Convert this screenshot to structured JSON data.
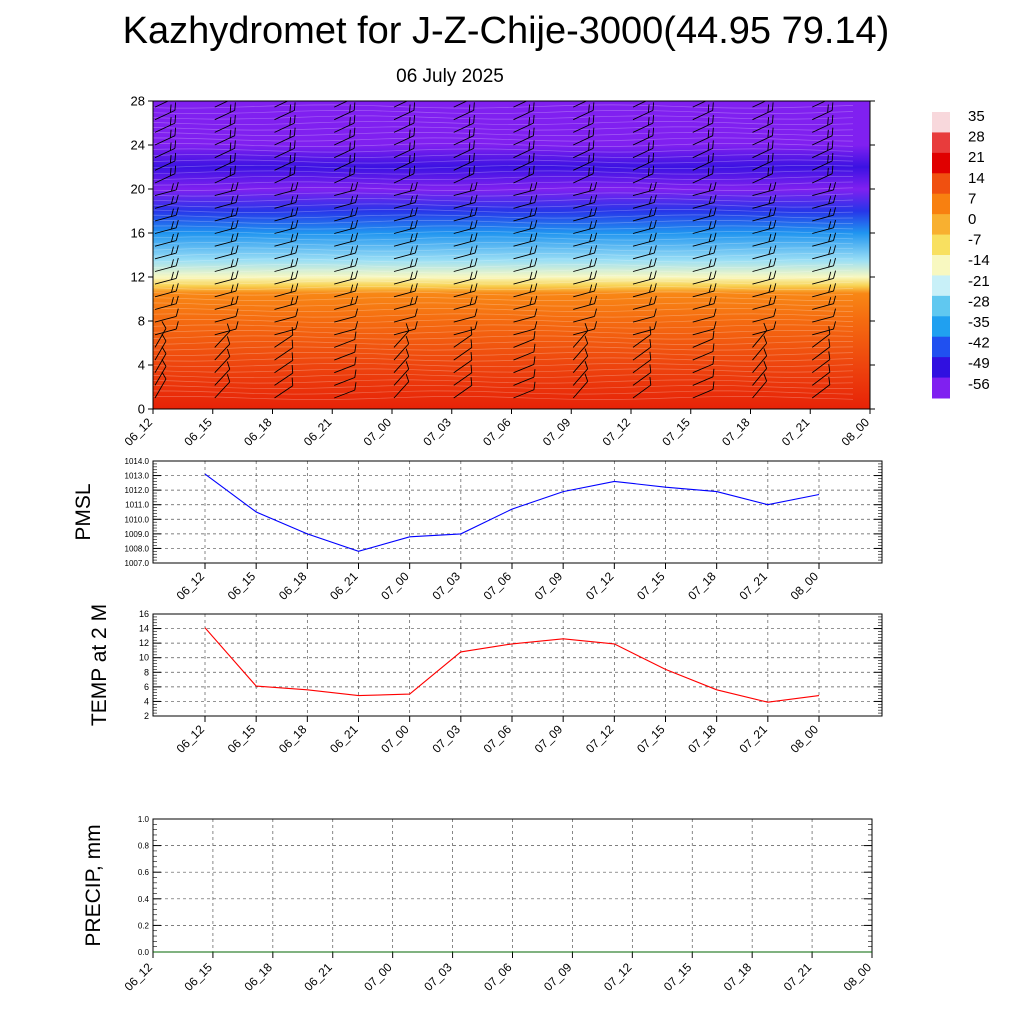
{
  "header": {
    "title": "Kazhydromet for J-Z-Chije-3000(44.95 79.14)",
    "date": "06 July 2025"
  },
  "chart_data": [
    {
      "type": "heatmap",
      "x_labels": [
        "06_12",
        "06_15",
        "06_18",
        "06_21",
        "07_00",
        "07_03",
        "07_06",
        "07_09",
        "07_12",
        "07_15",
        "07_18",
        "07_21",
        "08_00"
      ],
      "y_ticks": [
        0,
        4,
        8,
        12,
        16,
        20,
        24,
        28
      ],
      "ylim": [
        0,
        28
      ],
      "colorbar": {
        "labels": [
          "35",
          "28",
          "21",
          "14",
          "7",
          "0",
          "-7",
          "-14",
          "-21",
          "-28",
          "-35",
          "-42",
          "-49",
          "-56"
        ],
        "colors": [
          "#f8d8dc",
          "#e83c3c",
          "#e00000",
          "#f05010",
          "#f88010",
          "#f8b030",
          "#f8e060",
          "#f8f8c0",
          "#c8f0f8",
          "#60c8f0",
          "#20a0f0",
          "#2050f0",
          "#3010e0",
          "#8020f0"
        ]
      },
      "temperature_profile": [
        {
          "h": 0,
          "t": 18
        },
        {
          "h": 4,
          "t": 15
        },
        {
          "h": 8,
          "t": 10
        },
        {
          "h": 10.5,
          "t": 6
        },
        {
          "h": 11.2,
          "t": -5
        },
        {
          "h": 12,
          "t": -14
        },
        {
          "h": 13.5,
          "t": -24
        },
        {
          "h": 16,
          "t": -36
        },
        {
          "h": 18,
          "t": -45
        },
        {
          "h": 20,
          "t": -56
        },
        {
          "h": 22,
          "t": -50
        },
        {
          "h": 24,
          "t": -56
        },
        {
          "h": 28,
          "t": -60
        }
      ],
      "wind_barbs": "present"
    },
    {
      "type": "line",
      "ylabel": "PMSL",
      "x_labels": [
        "06_12",
        "06_15",
        "06_18",
        "06_21",
        "07_00",
        "07_03",
        "07_06",
        "07_09",
        "07_12",
        "07_15",
        "07_18",
        "07_21",
        "08_00"
      ],
      "y_ticks": [
        "1007.0",
        "1008.0",
        "1009.0",
        "1010.0",
        "1011.0",
        "1012.0",
        "1013.0",
        "1014.0"
      ],
      "ylim": [
        1007,
        1014
      ],
      "series": [
        {
          "color": "#0000ff",
          "values": [
            1013.1,
            1010.5,
            1009.0,
            1007.8,
            1008.8,
            1009.0,
            1010.7,
            1011.9,
            1012.6,
            1012.2,
            1011.9,
            1011.0,
            1011.7
          ]
        }
      ],
      "grid": true
    },
    {
      "type": "line",
      "ylabel": "TEMP at 2 M",
      "x_labels": [
        "06_12",
        "06_15",
        "06_18",
        "06_21",
        "07_00",
        "07_03",
        "07_06",
        "07_09",
        "07_12",
        "07_15",
        "07_18",
        "07_21",
        "08_00"
      ],
      "y_ticks": [
        "2",
        "4",
        "6",
        "8",
        "10",
        "12",
        "14",
        "16"
      ],
      "ylim": [
        2,
        16
      ],
      "series": [
        {
          "color": "#ff0000",
          "values": [
            14.1,
            6.1,
            5.6,
            4.8,
            5.0,
            10.8,
            11.9,
            12.6,
            11.9,
            8.4,
            5.6,
            3.9,
            4.8
          ]
        }
      ],
      "grid": true
    },
    {
      "type": "line",
      "ylabel": "PRECIP, mm",
      "x_labels": [
        "06_12",
        "06_15",
        "06_18",
        "06_21",
        "07_00",
        "07_03",
        "07_06",
        "07_09",
        "07_12",
        "07_15",
        "07_18",
        "07_21",
        "08_00"
      ],
      "y_ticks": [
        "0.0",
        "0.2",
        "0.4",
        "0.6",
        "0.8",
        "1.0"
      ],
      "ylim": [
        0,
        1
      ],
      "series": [
        {
          "color": "#006400",
          "values": [
            0,
            0,
            0,
            0,
            0,
            0,
            0,
            0,
            0,
            0,
            0,
            0,
            0
          ]
        }
      ],
      "grid": true
    }
  ]
}
